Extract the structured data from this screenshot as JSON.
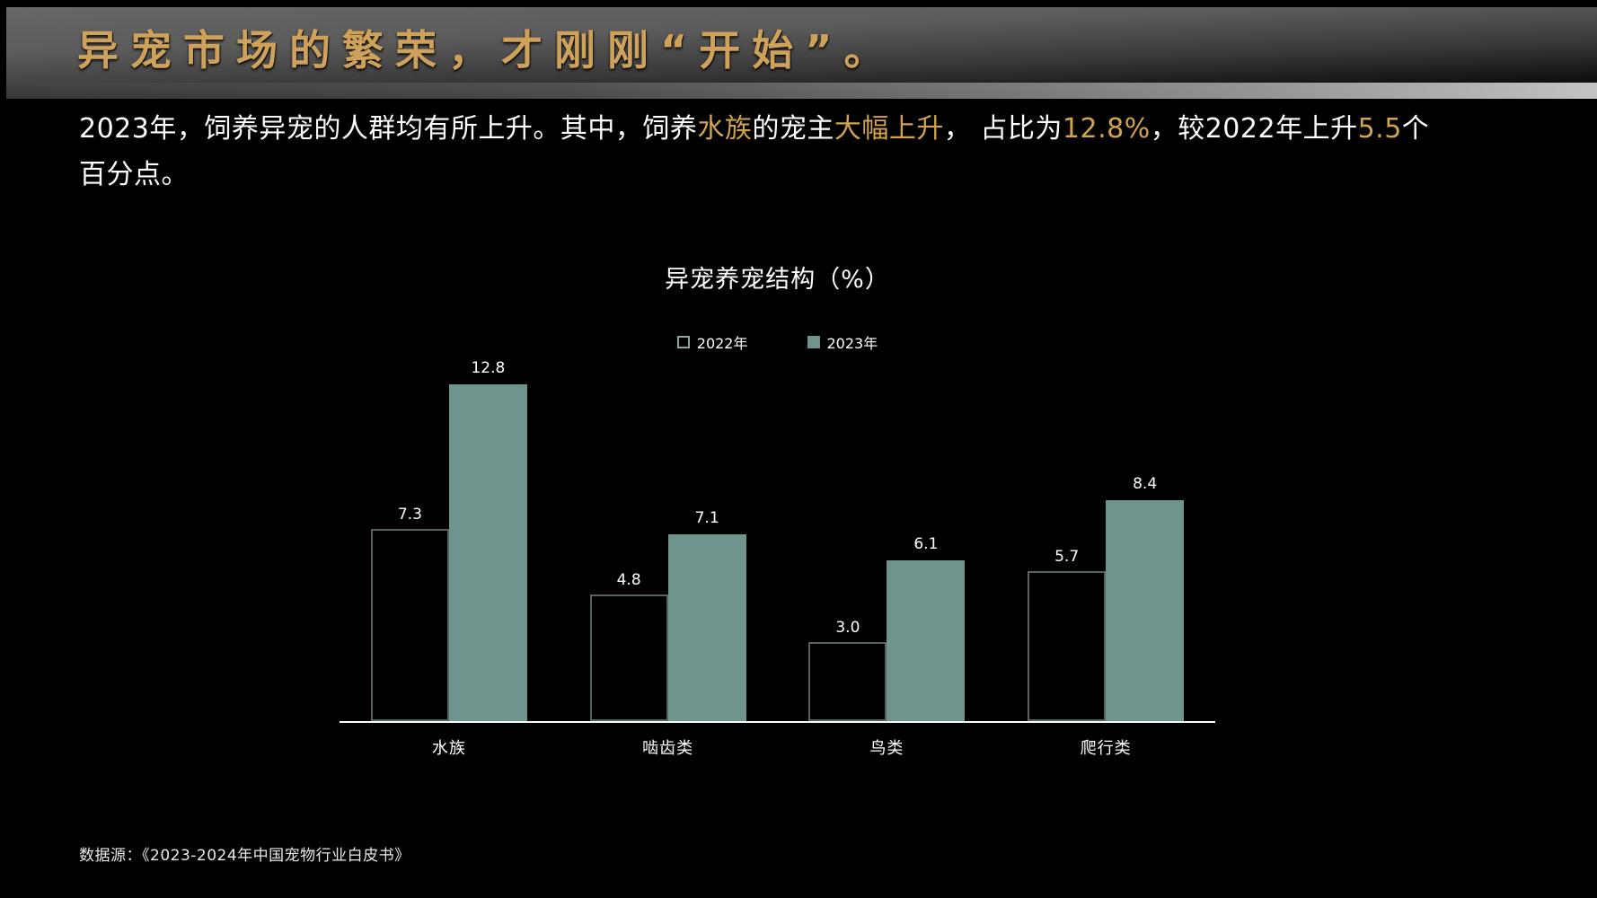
{
  "header": {
    "title": "异宠市场的繁荣，才刚刚“开始”。"
  },
  "intro": {
    "s1": "2023年，饲养异宠的人群均有所上升。其中，饲养",
    "s2": "水族",
    "s3": "的宠主",
    "s4": "大幅上升",
    "s5": "， 占比为",
    "s6": "12.8%",
    "s7": "，较2022年上升",
    "s8": "5.5",
    "s9": "个",
    "s10": "百分点。"
  },
  "chart_data": {
    "type": "bar",
    "title": "异宠养宠结构（%）",
    "categories": [
      "水族",
      "啮齿类",
      "鸟类",
      "爬行类"
    ],
    "series": [
      {
        "name": "2022年",
        "values": [
          7.3,
          4.8,
          3.0,
          5.7
        ],
        "style": "outline",
        "color": "#55645f",
        "legend_color": "#8ba49d"
      },
      {
        "name": "2023年",
        "values": [
          12.8,
          7.1,
          6.1,
          8.4
        ],
        "style": "fill",
        "color": "#6f948d",
        "legend_color": "#6f948d"
      }
    ],
    "xlabel": "",
    "ylabel": "",
    "ylim": [
      0,
      15
    ],
    "grid": false,
    "legend_position": "top",
    "value_labels": true
  },
  "footer": {
    "source": "数据源：《2023-2024年中国宠物行业白皮书》"
  },
  "colors": {
    "accent_gold": "#cfa25c",
    "highlight_gold": "#d2a34e",
    "bar_fill_2023": "#6f948d",
    "bar_outline_2022": "#55645f",
    "axis_line": "#ffffff",
    "background": "#000000"
  }
}
